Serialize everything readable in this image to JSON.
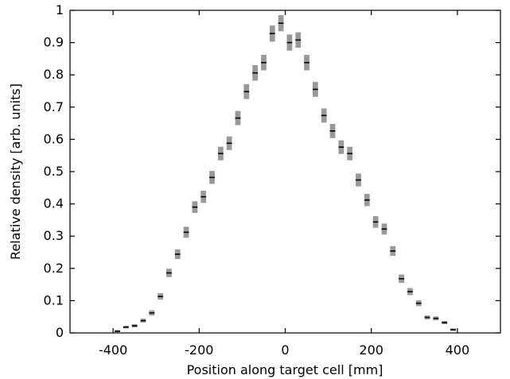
{
  "chart_data": {
    "type": "scatter",
    "title": "",
    "xlabel": "Position along target cell [mm]",
    "ylabel": "Relative density [arb. units]",
    "xlim": [
      -500,
      500
    ],
    "ylim": [
      0,
      1
    ],
    "xticks": [
      -400,
      -200,
      0,
      200,
      400
    ],
    "xtick_labels": [
      "-400",
      "-200",
      "0",
      "200",
      "400"
    ],
    "yticks": [
      0,
      0.1,
      0.2,
      0.3,
      0.4,
      0.5,
      0.6,
      0.7,
      0.8,
      0.9,
      1
    ],
    "ytick_labels": [
      "0",
      "0.1",
      "0.2",
      "0.3",
      "0.4",
      "0.5",
      "0.6",
      "0.7",
      "0.8",
      "0.9",
      "1"
    ],
    "grid": false,
    "legend": "none",
    "marker_color": "#999999",
    "line_color": "#000000",
    "series": [
      {
        "x": [
          -390,
          -370,
          -350,
          -330,
          -310,
          -290,
          -270,
          -250,
          -230,
          -210,
          -190,
          -170,
          -150,
          -130,
          -110,
          -90,
          -70,
          -50,
          -30,
          -10,
          10,
          30,
          50,
          70,
          90,
          110,
          130,
          150,
          170,
          190,
          210,
          230,
          250,
          270,
          290,
          310,
          330,
          350,
          370,
          390
        ],
        "y": [
          0.005,
          0.018,
          0.022,
          0.038,
          0.062,
          0.113,
          0.186,
          0.244,
          0.312,
          0.39,
          0.422,
          0.482,
          0.556,
          0.588,
          0.666,
          0.748,
          0.806,
          0.838,
          0.928,
          0.96,
          0.9,
          0.908,
          0.838,
          0.755,
          0.674,
          0.626,
          0.576,
          0.556,
          0.474,
          0.412,
          0.344,
          0.322,
          0.254,
          0.168,
          0.128,
          0.092,
          0.048,
          0.045,
          0.032,
          0.01
        ],
        "err": [
          0.004,
          0.004,
          0.005,
          0.006,
          0.008,
          0.01,
          0.013,
          0.015,
          0.017,
          0.018,
          0.019,
          0.02,
          0.021,
          0.021,
          0.022,
          0.023,
          0.024,
          0.024,
          0.025,
          0.025,
          0.025,
          0.024,
          0.024,
          0.023,
          0.022,
          0.022,
          0.021,
          0.021,
          0.02,
          0.019,
          0.018,
          0.017,
          0.015,
          0.013,
          0.011,
          0.009,
          0.006,
          0.006,
          0.005,
          0.004
        ]
      }
    ]
  }
}
